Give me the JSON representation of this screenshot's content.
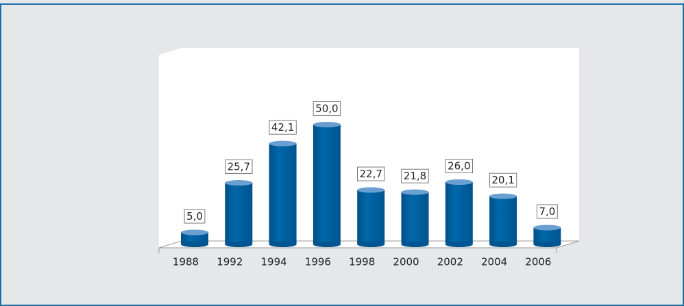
{
  "chart_data": {
    "type": "bar",
    "style": "cylinder",
    "categories": [
      "1988",
      "1992",
      "1994",
      "1996",
      "1998",
      "2000",
      "2002",
      "2004",
      "2006"
    ],
    "values": [
      5.0,
      25.7,
      42.1,
      50.0,
      22.7,
      21.8,
      26.0,
      20.1,
      7.0
    ],
    "value_labels": [
      "5,0",
      "25,7",
      "42,1",
      "50,0",
      "22,7",
      "21,8",
      "26,0",
      "20,1",
      "7,0"
    ],
    "color": "#0064a4"
  }
}
